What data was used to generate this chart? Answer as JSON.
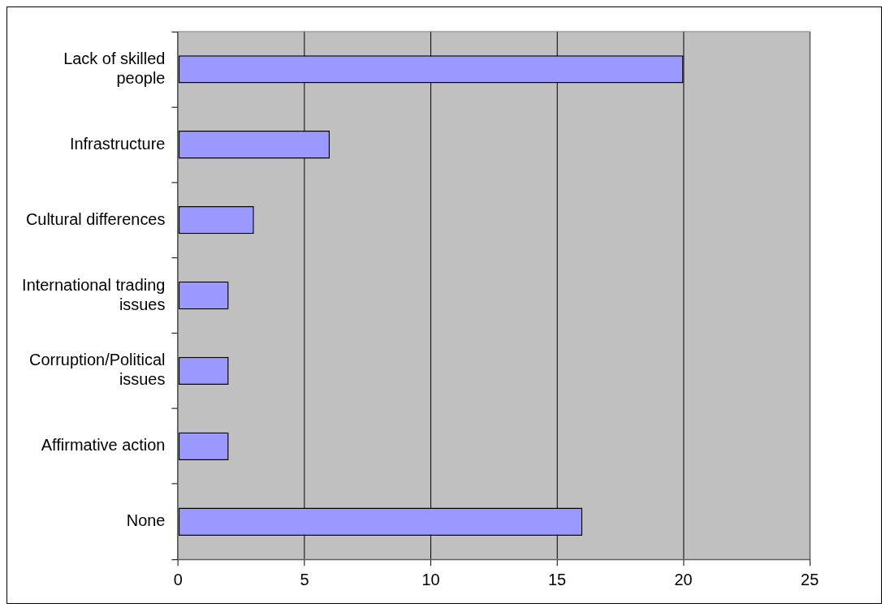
{
  "chart_data": {
    "type": "bar",
    "orientation": "horizontal",
    "categories": [
      "Lack of skilled people",
      "Infrastructure",
      "Cultural differences",
      "International trading issues",
      "Corruption/Political issues",
      "Affirmative action",
      "None"
    ],
    "values": [
      20,
      6,
      3,
      2,
      2,
      2,
      16
    ],
    "color": "#9999ff",
    "xlim": [
      0,
      25
    ],
    "xticks": [
      0,
      5,
      10,
      15,
      20,
      25
    ],
    "grid": "x",
    "legend": false
  }
}
